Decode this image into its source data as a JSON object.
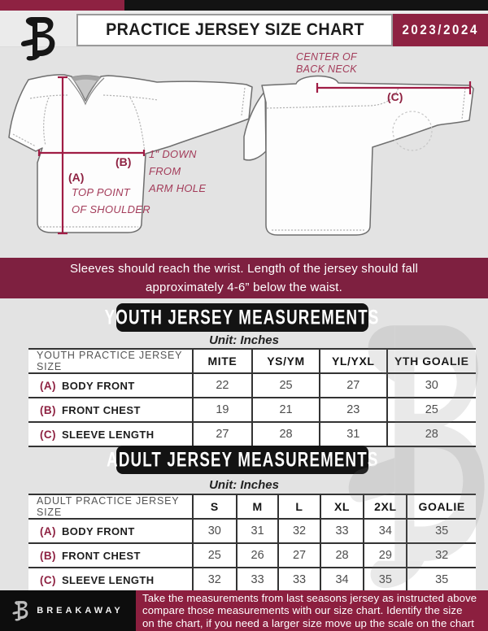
{
  "colors": {
    "accent_maroon": "#8e2242",
    "banner_maroon": "#7e2040",
    "footer_maroon": "#8c1f3f",
    "measure_line": "#a01d45",
    "black": "#131313"
  },
  "header": {
    "title": "PRACTICE JERSEY SIZE CHART",
    "season": "2023/2024",
    "logo_icon": "breakaway-b-logo"
  },
  "diagram": {
    "front": {
      "a_key": "(A)",
      "a_note_lines": [
        "TOP POINT",
        "OF SHOULDER"
      ],
      "b_key": "(B)",
      "b_note_lines": [
        "1\" DOWN",
        "FROM",
        "ARM HOLE"
      ]
    },
    "back": {
      "c_key": "(C)",
      "c_note_lines": [
        "CENTER OF",
        "BACK NECK"
      ]
    }
  },
  "banner": {
    "lines": [
      "Sleeves should reach the wrist. Length of the jersey should fall",
      "approximately 4-6” below the waist."
    ]
  },
  "youth": {
    "heading": "YOUTH JERSEY MEASUREMENTS",
    "unit": "Unit: Inches",
    "table": {
      "label_header": "YOUTH PRACTICE JERSEY SIZE",
      "columns": [
        "MITE",
        "YS/YM",
        "YL/YXL",
        "YTH GOALIE"
      ],
      "rows": [
        {
          "key": "(A)",
          "label": "BODY FRONT",
          "values": [
            "22",
            "25",
            "27",
            "30"
          ]
        },
        {
          "key": "(B)",
          "label": "FRONT CHEST",
          "values": [
            "19",
            "21",
            "23",
            "25"
          ]
        },
        {
          "key": "(C)",
          "label": "SLEEVE LENGTH",
          "values": [
            "27",
            "28",
            "31",
            "28"
          ]
        }
      ]
    }
  },
  "adult": {
    "heading": "ADULT JERSEY MEASUREMENTS",
    "unit": "Unit: Inches",
    "table": {
      "label_header": "ADULT PRACTICE JERSEY SIZE",
      "columns": [
        "S",
        "M",
        "L",
        "XL",
        "2XL",
        "GOALIE"
      ],
      "rows": [
        {
          "key": "(A)",
          "label": "BODY FRONT",
          "values": [
            "30",
            "31",
            "32",
            "33",
            "34",
            "35"
          ]
        },
        {
          "key": "(B)",
          "label": "FRONT CHEST",
          "values": [
            "25",
            "26",
            "27",
            "28",
            "29",
            "32"
          ]
        },
        {
          "key": "(C)",
          "label": "SLEEVE LENGTH",
          "values": [
            "32",
            "33",
            "33",
            "34",
            "35",
            "35"
          ]
        }
      ]
    }
  },
  "footer": {
    "brand": "BREAKAWAY",
    "logo_icon": "breakaway-b-logo",
    "note_lines": [
      "Take the measurements from last seasons jersey as instructed above",
      "compare those measurements  with our size chart. Identify the size",
      "on the chart, if you need a larger size move up the scale on the chart"
    ]
  }
}
